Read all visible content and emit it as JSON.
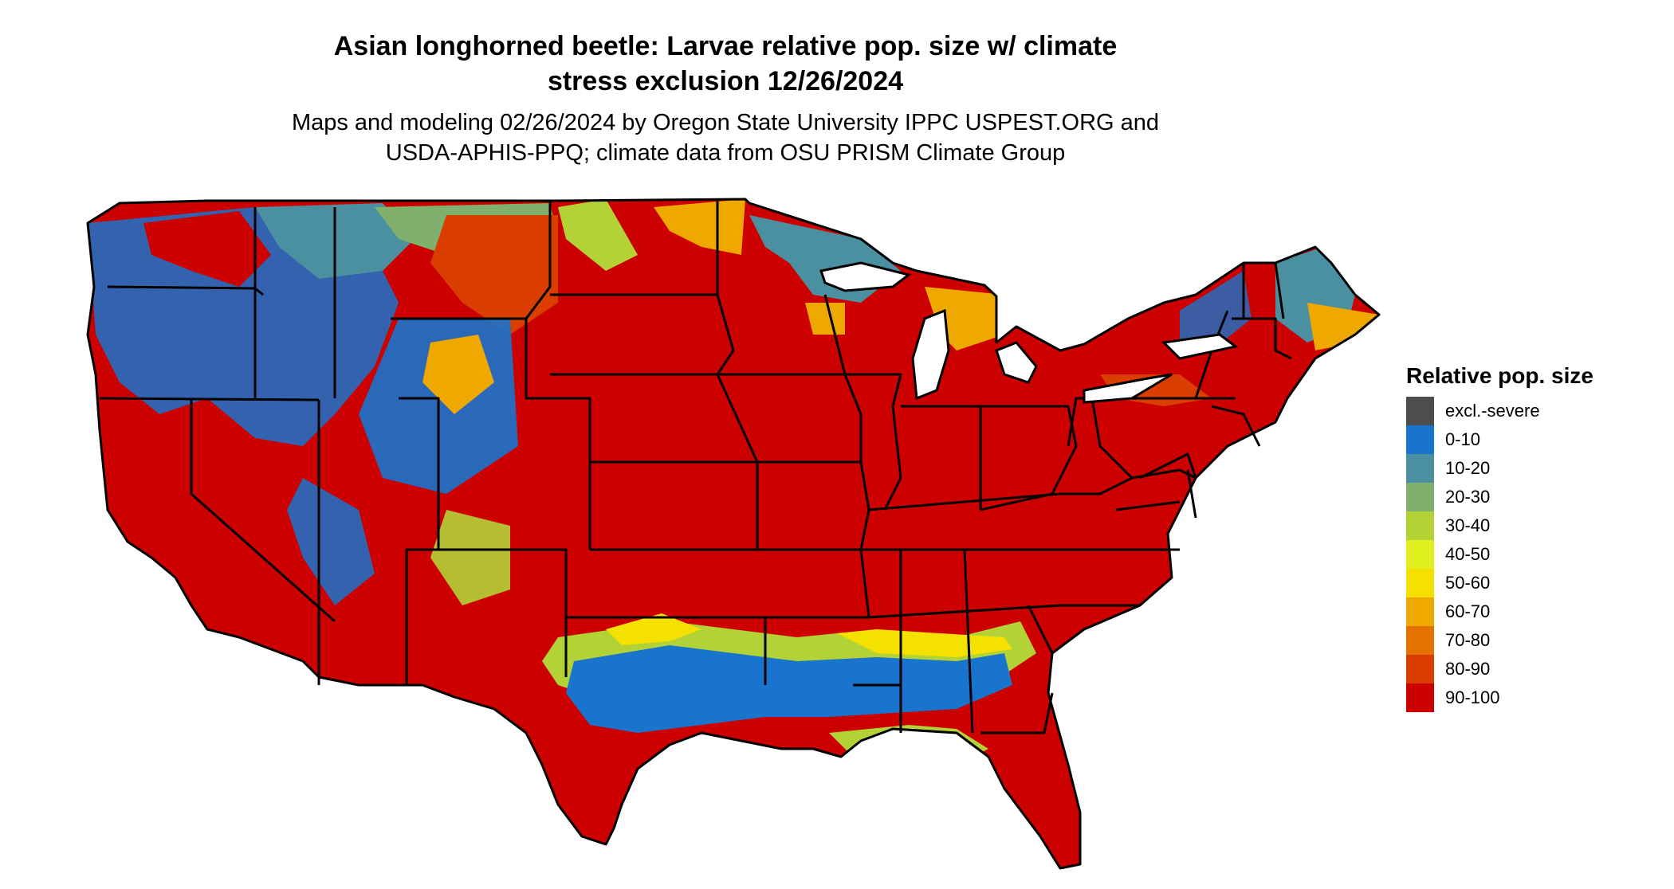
{
  "title": {
    "line1": "Asian longhorned beetle: Larvae relative pop. size w/ climate",
    "line2": "stress exclusion 12/26/2024"
  },
  "subtitle": {
    "line1": "Maps and modeling 02/26/2024 by Oregon State University IPPC USPEST.ORG and",
    "line2": "USDA-APHIS-PPQ; climate data from OSU PRISM Climate Group"
  },
  "legend": {
    "title": "Relative pop. size",
    "items": [
      {
        "label": "excl.-severe",
        "color": "#4d4d4d"
      },
      {
        "label": "0-10",
        "color": "#1874cd"
      },
      {
        "label": "10-20",
        "color": "#4a90a0"
      },
      {
        "label": "20-30",
        "color": "#7fb06e"
      },
      {
        "label": "30-40",
        "color": "#b2d235"
      },
      {
        "label": "40-50",
        "color": "#e0f01e"
      },
      {
        "label": "50-60",
        "color": "#f5e100"
      },
      {
        "label": "60-70",
        "color": "#eea800"
      },
      {
        "label": "70-80",
        "color": "#e37200"
      },
      {
        "label": "80-90",
        "color": "#d93d00"
      },
      {
        "label": "90-100",
        "color": "#cd0000"
      }
    ]
  }
}
